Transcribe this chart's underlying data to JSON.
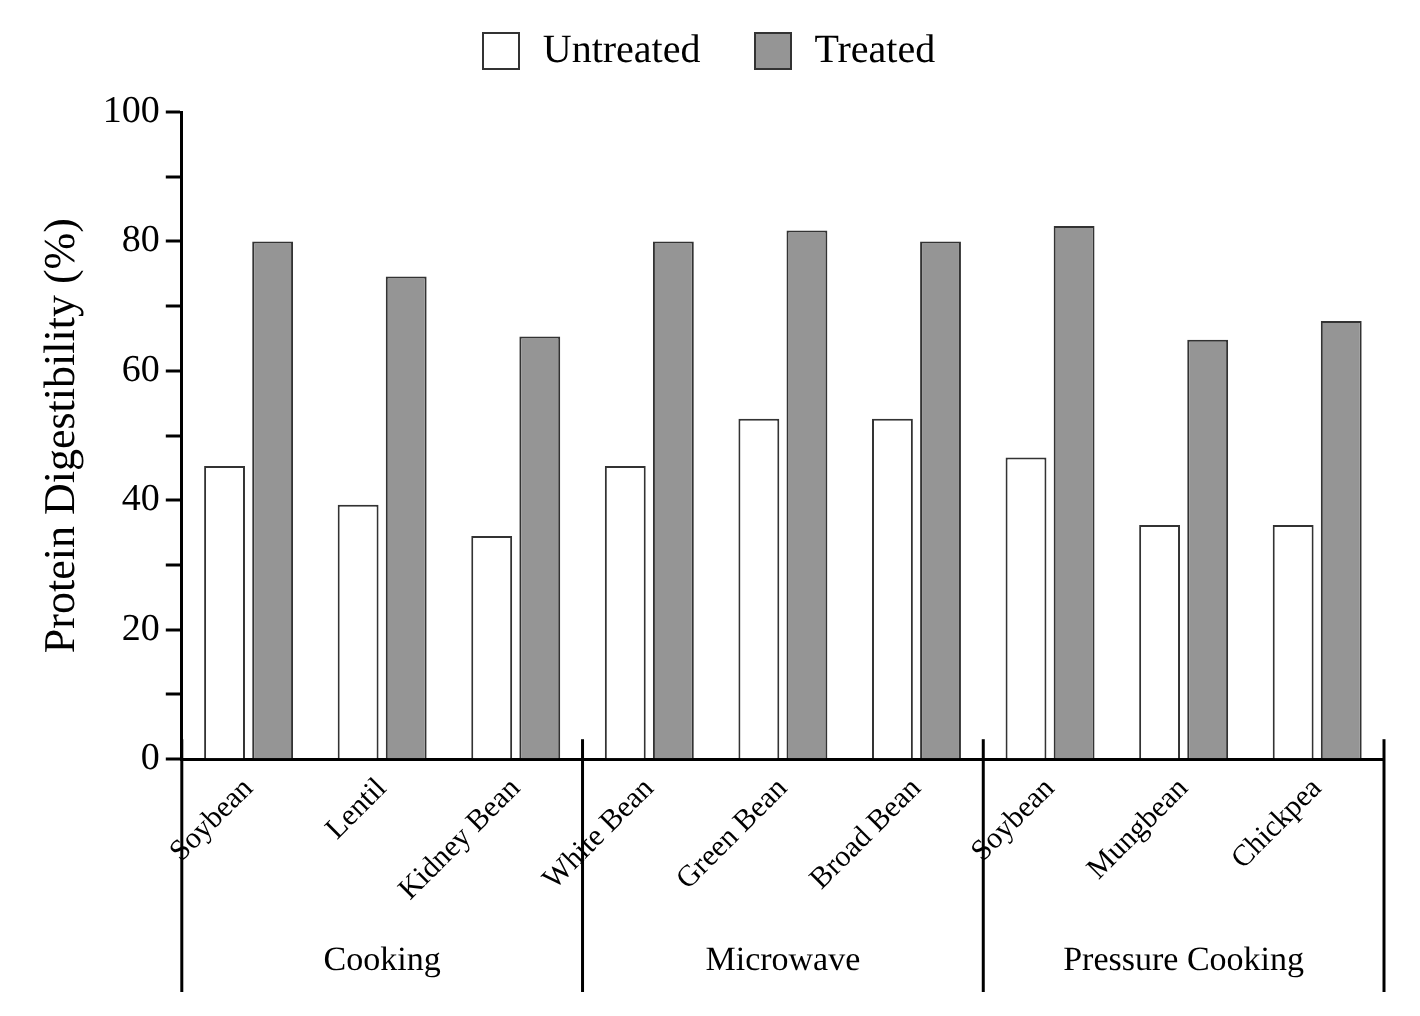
{
  "chart_data": {
    "type": "bar",
    "ylabel": "Protein Digestibility (%)",
    "categories": [
      "Soybean",
      "Lentil",
      "Kidney Bean",
      "White Bean",
      "Green Bean",
      "Broad Bean",
      "Soybean",
      "Mungbean",
      "Chickpea"
    ],
    "series": [
      {
        "name": "Untreated",
        "color": "#ffffff",
        "values": [
          45.3,
          39.3,
          34.5,
          45.3,
          52.6,
          52.6,
          46.6,
          36.2,
          36.2
        ]
      },
      {
        "name": "Treated",
        "color": "#959595",
        "values": [
          80,
          74.6,
          65.3,
          80,
          81.7,
          80,
          82.4,
          64.8,
          67.7
        ]
      }
    ],
    "annotations": [
      "Cooking",
      "Microwave",
      "Pressure Cooking"
    ],
    "ylim": [
      0,
      100
    ],
    "yticks": [
      0,
      {
        "value": 10,
        "label": null
      },
      20,
      {
        "value": 30,
        "label": null
      },
      40,
      {
        "value": 50,
        "label": null
      },
      60,
      {
        "value": 70,
        "label": null
      },
      80,
      {
        "value": 90,
        "label": null
      },
      100
    ],
    "grid": false,
    "legend": "top"
  }
}
